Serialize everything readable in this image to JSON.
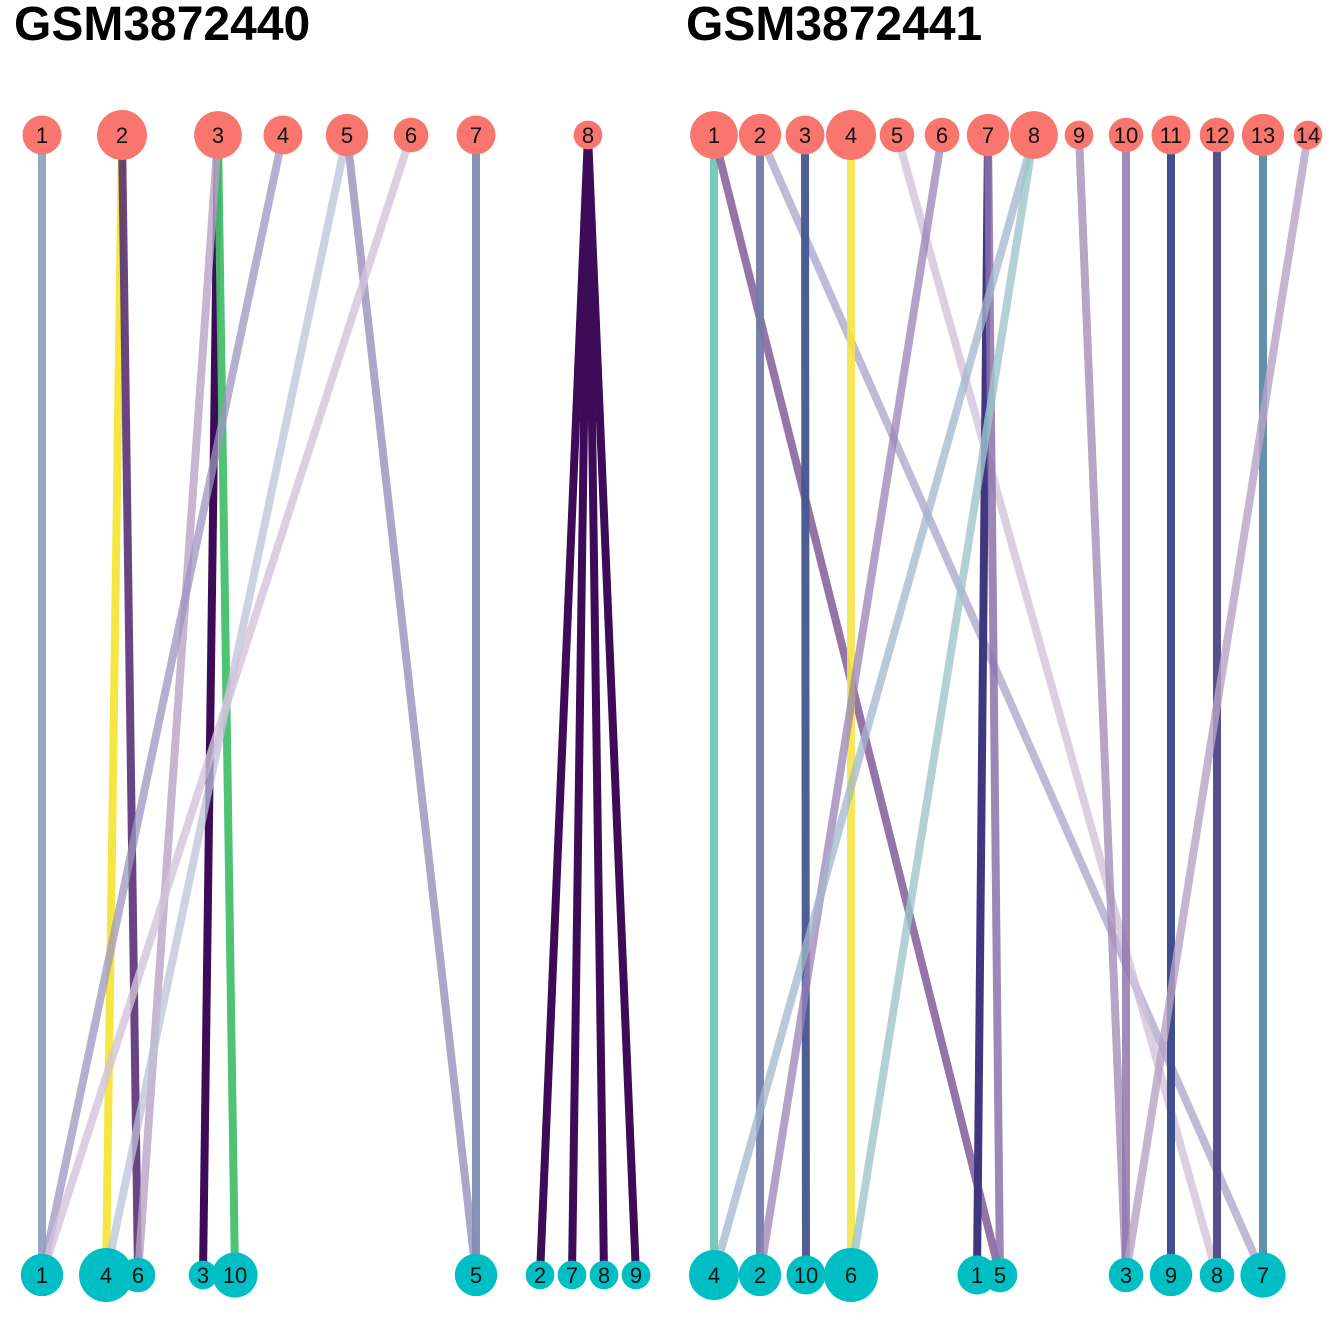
{
  "panels": [
    {
      "title": "GSM3872440",
      "top_nodes": [
        {
          "label": "1",
          "size": 1
        },
        {
          "label": "2",
          "size": 3
        },
        {
          "label": "3",
          "size": 2.5
        },
        {
          "label": "4",
          "size": 1
        },
        {
          "label": "5",
          "size": 1.5
        },
        {
          "label": "6",
          "size": 0.5
        },
        {
          "label": "7",
          "size": 1
        },
        {
          "label": "8",
          "size": 0.1
        }
      ],
      "bottom_nodes": [
        {
          "label": "1",
          "size": 1.5
        },
        {
          "label": "4",
          "size": 4
        },
        {
          "label": "6",
          "size": 0.5
        },
        {
          "label": "3",
          "size": 0.1
        },
        {
          "label": "10",
          "size": 2
        },
        {
          "label": "5",
          "size": 1.5
        },
        {
          "label": "2",
          "size": 0.1
        },
        {
          "label": "7",
          "size": 0.1
        },
        {
          "label": "8",
          "size": 0.1
        },
        {
          "label": "9",
          "size": 0.1
        }
      ],
      "edges": [
        {
          "from": "1",
          "to": "1",
          "color": "#8b9dbb",
          "opacity": 0.9
        },
        {
          "from": "2",
          "to": "4",
          "color": "#f5e53a",
          "opacity": 0.95
        },
        {
          "from": "2",
          "to": "6",
          "color": "#5a3175",
          "opacity": 0.9
        },
        {
          "from": "3",
          "to": "3",
          "color": "#3d0b58",
          "opacity": 1
        },
        {
          "from": "3",
          "to": "10",
          "color": "#47bf6d",
          "opacity": 0.95
        },
        {
          "from": "3",
          "to": "6",
          "color": "#b9a2c5",
          "opacity": 0.8
        },
        {
          "from": "4",
          "to": "1",
          "color": "#9c96bf",
          "opacity": 0.75
        },
        {
          "from": "5",
          "to": "4",
          "color": "#bcc2d8",
          "opacity": 0.75
        },
        {
          "from": "5",
          "to": "5",
          "color": "#9990bb",
          "opacity": 0.8
        },
        {
          "from": "6",
          "to": "1",
          "color": "#d2c3da",
          "opacity": 0.8
        },
        {
          "from": "7",
          "to": "5",
          "color": "#7f8cb2",
          "opacity": 0.95
        },
        {
          "from": "8",
          "to": "2",
          "color": "#3d0b58",
          "opacity": 1
        },
        {
          "from": "8",
          "to": "7",
          "color": "#3d0b58",
          "opacity": 1
        },
        {
          "from": "8",
          "to": "8",
          "color": "#3d0b58",
          "opacity": 1
        },
        {
          "from": "8",
          "to": "9",
          "color": "#3d0b58",
          "opacity": 1
        }
      ]
    },
    {
      "title": "GSM3872441",
      "top_nodes": [
        {
          "label": "1",
          "size": 2.5
        },
        {
          "label": "2",
          "size": 1.5
        },
        {
          "label": "3",
          "size": 1
        },
        {
          "label": "4",
          "size": 3
        },
        {
          "label": "5",
          "size": 0.5
        },
        {
          "label": "6",
          "size": 0.5
        },
        {
          "label": "7",
          "size": 1.5
        },
        {
          "label": "8",
          "size": 2.5
        },
        {
          "label": "9",
          "size": 0.1
        },
        {
          "label": "10",
          "size": 0.5
        },
        {
          "label": "11",
          "size": 1
        },
        {
          "label": "12",
          "size": 0.5
        },
        {
          "label": "13",
          "size": 1.5
        },
        {
          "label": "14",
          "size": 0.1
        }
      ],
      "bottom_nodes": [
        {
          "label": "4",
          "size": 3
        },
        {
          "label": "2",
          "size": 1.5
        },
        {
          "label": "10",
          "size": 1
        },
        {
          "label": "6",
          "size": 4
        },
        {
          "label": "1",
          "size": 1
        },
        {
          "label": "5",
          "size": 0.5
        },
        {
          "label": "3",
          "size": 0.5
        },
        {
          "label": "9",
          "size": 1.5
        },
        {
          "label": "8",
          "size": 0.5
        },
        {
          "label": "7",
          "size": 2
        }
      ],
      "edges": [
        {
          "from": "1",
          "to": "4",
          "color": "#6fc7b3",
          "opacity": 0.95
        },
        {
          "from": "1",
          "to": "5",
          "color": "#7a5290",
          "opacity": 0.8
        },
        {
          "from": "2",
          "to": "2",
          "color": "#727aa8",
          "opacity": 0.95
        },
        {
          "from": "2",
          "to": "7",
          "color": "#a9a4c8",
          "opacity": 0.75
        },
        {
          "from": "3",
          "to": "10",
          "color": "#46558f",
          "opacity": 0.95
        },
        {
          "from": "4",
          "to": "6",
          "color": "#f3e447",
          "opacity": 0.9
        },
        {
          "from": "5",
          "to": "8",
          "color": "#d2c3da",
          "opacity": 0.8
        },
        {
          "from": "6",
          "to": "2",
          "color": "#9a82b7",
          "opacity": 0.75
        },
        {
          "from": "7",
          "to": "1",
          "color": "#413680",
          "opacity": 1
        },
        {
          "from": "7",
          "to": "5",
          "color": "#8c72ab",
          "opacity": 0.85
        },
        {
          "from": "8",
          "to": "4",
          "color": "#a2b7cc",
          "opacity": 0.75
        },
        {
          "from": "8",
          "to": "6",
          "color": "#9dc6cc",
          "opacity": 0.8
        },
        {
          "from": "9",
          "to": "3",
          "color": "#a48eb9",
          "opacity": 0.8
        },
        {
          "from": "10",
          "to": "3",
          "color": "#8f77ad",
          "opacity": 0.85
        },
        {
          "from": "11",
          "to": "9",
          "color": "#3f508c",
          "opacity": 1
        },
        {
          "from": "12",
          "to": "8",
          "color": "#4d4786",
          "opacity": 0.95
        },
        {
          "from": "13",
          "to": "7",
          "color": "#5b8aa6",
          "opacity": 0.95
        },
        {
          "from": "14",
          "to": "3",
          "color": "#b7a3c4",
          "opacity": 0.8
        }
      ]
    }
  ],
  "colors": {
    "top_node": "#f8766d",
    "bottom_node": "#00bfc4"
  }
}
